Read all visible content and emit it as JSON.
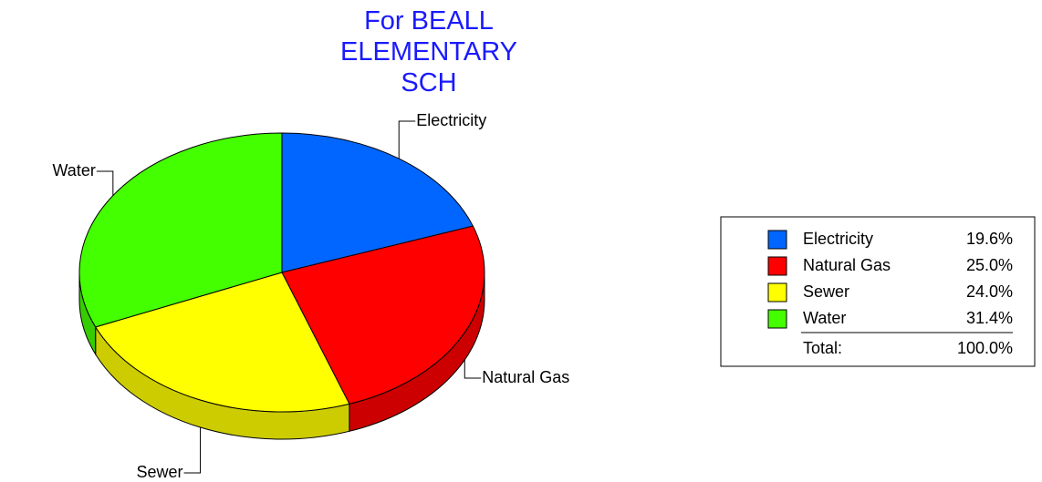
{
  "chart_data": {
    "type": "pie",
    "title": "For BEALL ELEMENTARY SCH",
    "categories": [
      "Electricity",
      "Natural Gas",
      "Sewer",
      "Water"
    ],
    "values": [
      19.6,
      25.0,
      24.0,
      31.4
    ],
    "value_labels": [
      "19.6%",
      "25.0%",
      "24.0%",
      "31.4%"
    ],
    "colors": [
      "#0066ff",
      "#ff0000",
      "#ffff00",
      "#44ff00"
    ],
    "total": {
      "label": "Total:",
      "value": 100,
      "value_label": "100.0%"
    }
  }
}
